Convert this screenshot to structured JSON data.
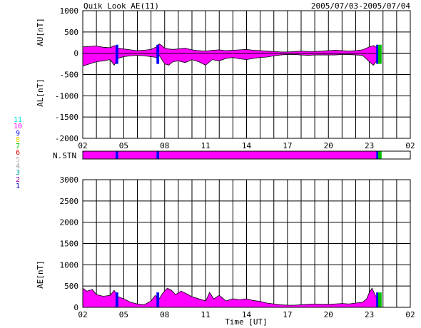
{
  "header": {
    "title": "Quik Look AE(11)",
    "date_range": "2005/07/03-2005/07/04"
  },
  "stations_legend": {
    "items": [
      {
        "label": "11",
        "color": "#00e0e0"
      },
      {
        "label": "10",
        "color": "#ff00ff"
      },
      {
        "label": "9",
        "color": "#0000ff"
      },
      {
        "label": "8",
        "color": "#e0d000"
      },
      {
        "label": "7",
        "color": "#00c000"
      },
      {
        "label": "6",
        "color": "#e00000"
      },
      {
        "label": "5",
        "color": "#c0c0c0"
      },
      {
        "label": "4",
        "color": "#a0a0a0"
      },
      {
        "label": "3",
        "color": "#00a0a0"
      },
      {
        "label": "2",
        "color": "#a000a0"
      },
      {
        "label": "1",
        "color": "#0000c0"
      }
    ]
  },
  "chart_data": [
    {
      "type": "area",
      "name": "AU/AL",
      "ylabel_upper": "AU[nT]",
      "ylabel_lower": "AL[nT]",
      "ylim": [
        -2000,
        1000
      ],
      "yticks": [
        1000,
        500,
        0,
        -500,
        -1000,
        -1500,
        -2000
      ],
      "x_ticks": [
        "02",
        "05",
        "08",
        "11",
        "14",
        "17",
        "20",
        "23",
        "02"
      ],
      "x_range_hours": [
        2,
        26
      ],
      "grid": true,
      "fill_color": "#ff00ff",
      "au": {
        "x": [
          2.0,
          2.5,
          3.0,
          3.5,
          4.0,
          4.3,
          4.6,
          5.0,
          5.5,
          6.0,
          6.5,
          7.0,
          7.4,
          7.6,
          7.8,
          8.0,
          8.3,
          8.6,
          9.0,
          9.5,
          10.0,
          10.5,
          11.0,
          11.5,
          12.0,
          12.5,
          13.0,
          13.5,
          14.0,
          14.5,
          15.0,
          15.5,
          16.0,
          16.5,
          17.0,
          17.5,
          18.0,
          18.5,
          19.0,
          19.5,
          20.0,
          20.5,
          21.0,
          21.5,
          22.0,
          22.5,
          23.0,
          23.3,
          23.6,
          23.8
        ],
        "values": [
          150,
          160,
          170,
          140,
          130,
          180,
          120,
          100,
          80,
          60,
          70,
          90,
          150,
          220,
          180,
          120,
          100,
          90,
          100,
          120,
          80,
          60,
          50,
          70,
          80,
          60,
          70,
          80,
          90,
          70,
          60,
          50,
          40,
          30,
          30,
          40,
          50,
          40,
          40,
          50,
          60,
          70,
          60,
          50,
          60,
          80,
          150,
          180,
          120,
          80
        ]
      },
      "al": {
        "x": [
          2.0,
          2.5,
          3.0,
          3.5,
          4.0,
          4.3,
          4.6,
          5.0,
          5.5,
          6.0,
          6.5,
          7.0,
          7.4,
          7.6,
          7.8,
          8.0,
          8.3,
          8.6,
          9.0,
          9.5,
          10.0,
          10.5,
          11.0,
          11.5,
          12.0,
          12.5,
          13.0,
          13.5,
          14.0,
          14.5,
          15.0,
          15.5,
          16.0,
          16.5,
          17.0,
          17.5,
          18.0,
          18.5,
          19.0,
          19.5,
          20.0,
          20.5,
          21.0,
          21.5,
          22.0,
          22.5,
          23.0,
          23.3,
          23.6,
          23.8
        ],
        "values": [
          -300,
          -250,
          -200,
          -180,
          -150,
          -280,
          -120,
          -80,
          -60,
          -50,
          -60,
          -80,
          -100,
          -50,
          -150,
          -250,
          -280,
          -200,
          -180,
          -220,
          -150,
          -200,
          -280,
          -150,
          -180,
          -120,
          -100,
          -130,
          -150,
          -120,
          -100,
          -90,
          -60,
          -40,
          -30,
          -30,
          -40,
          -50,
          -40,
          -40,
          -40,
          -40,
          -30,
          -30,
          -40,
          -50,
          -200,
          -280,
          -150,
          -100
        ]
      }
    },
    {
      "type": "bar",
      "name": "N.STN",
      "ylabel": "N.STN",
      "x_range_hours": [
        2,
        26
      ],
      "segments": [
        {
          "start": 2.0,
          "end": 4.4,
          "stations": 10
        },
        {
          "start": 4.4,
          "end": 4.6,
          "stations": 9
        },
        {
          "start": 4.6,
          "end": 7.4,
          "stations": 10
        },
        {
          "start": 7.4,
          "end": 7.6,
          "stations": 9
        },
        {
          "start": 7.6,
          "end": 23.5,
          "stations": 10
        },
        {
          "start": 23.5,
          "end": 23.65,
          "stations": 9
        },
        {
          "start": 23.65,
          "end": 23.9,
          "stations": 7
        }
      ]
    },
    {
      "type": "area",
      "name": "AE",
      "ylabel": "AE[nT]",
      "xlabel": "Time [UT]",
      "ylim": [
        0,
        3000
      ],
      "yticks": [
        3000,
        2500,
        2000,
        1500,
        1000,
        500,
        0
      ],
      "x_ticks": [
        "02",
        "05",
        "08",
        "11",
        "14",
        "17",
        "20",
        "23",
        "02"
      ],
      "x_range_hours": [
        2,
        26
      ],
      "grid": true,
      "fill_color": "#ff00ff",
      "ae": {
        "x": [
          2.0,
          2.3,
          2.7,
          3.0,
          3.5,
          4.0,
          4.3,
          4.6,
          5.0,
          5.5,
          6.0,
          6.5,
          7.0,
          7.3,
          7.6,
          7.9,
          8.2,
          8.5,
          8.8,
          9.2,
          9.6,
          10.0,
          10.5,
          11.0,
          11.3,
          11.6,
          12.0,
          12.5,
          13.0,
          13.5,
          14.0,
          14.5,
          15.0,
          15.5,
          16.0,
          16.5,
          17.0,
          17.5,
          18.0,
          18.5,
          19.0,
          19.5,
          20.0,
          20.5,
          21.0,
          21.5,
          22.0,
          22.5,
          22.8,
          23.0,
          23.2,
          23.4,
          23.6,
          23.8
        ],
        "values": [
          450,
          380,
          420,
          300,
          260,
          280,
          400,
          250,
          200,
          120,
          80,
          60,
          150,
          280,
          200,
          350,
          450,
          400,
          300,
          380,
          320,
          250,
          200,
          150,
          350,
          200,
          280,
          150,
          200,
          180,
          200,
          160,
          140,
          100,
          80,
          60,
          50,
          50,
          60,
          70,
          80,
          70,
          70,
          80,
          90,
          80,
          100,
          120,
          200,
          350,
          450,
          300,
          200,
          180
        ]
      }
    }
  ]
}
